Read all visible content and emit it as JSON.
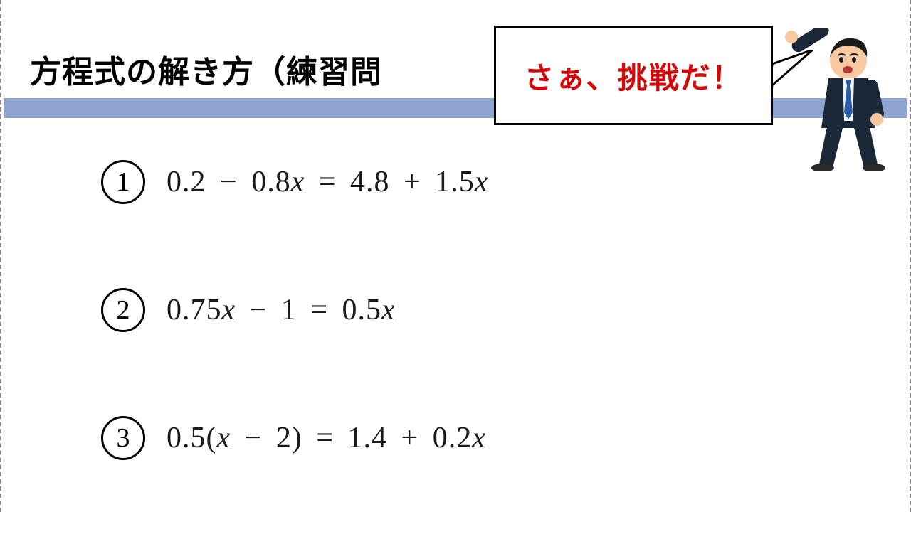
{
  "title": "方程式の解き方（練習問",
  "speech": "さぁ、挑戦だ！",
  "colors": {
    "bar": "#8fa3d1",
    "speech_text": "#d40808",
    "text": "#1a1a1a"
  },
  "problems": [
    {
      "num": "1",
      "eq_html": "0.2 <span class='op'>−</span> 0.8<span class='x'>x</span> <span class='op'>=</span> 4.8 <span class='op'>+</span> 1.5<span class='x'>x</span>"
    },
    {
      "num": "2",
      "eq_html": "0.75<span class='x'>x</span> <span class='op'>−</span> 1 <span class='op'>=</span> 0.5<span class='x'>x</span>"
    },
    {
      "num": "3",
      "eq_html": "0.5(<span class='x'>x</span> <span class='op'>−</span> 2) <span class='op'>=</span> 1.4 <span class='op'>+</span> 0.2<span class='x'>x</span>"
    }
  ],
  "layout": {
    "title_fontsize": 44,
    "speech_fontsize": 42,
    "equation_fontsize": 42,
    "circled_size": 62,
    "row_gap": 118
  }
}
